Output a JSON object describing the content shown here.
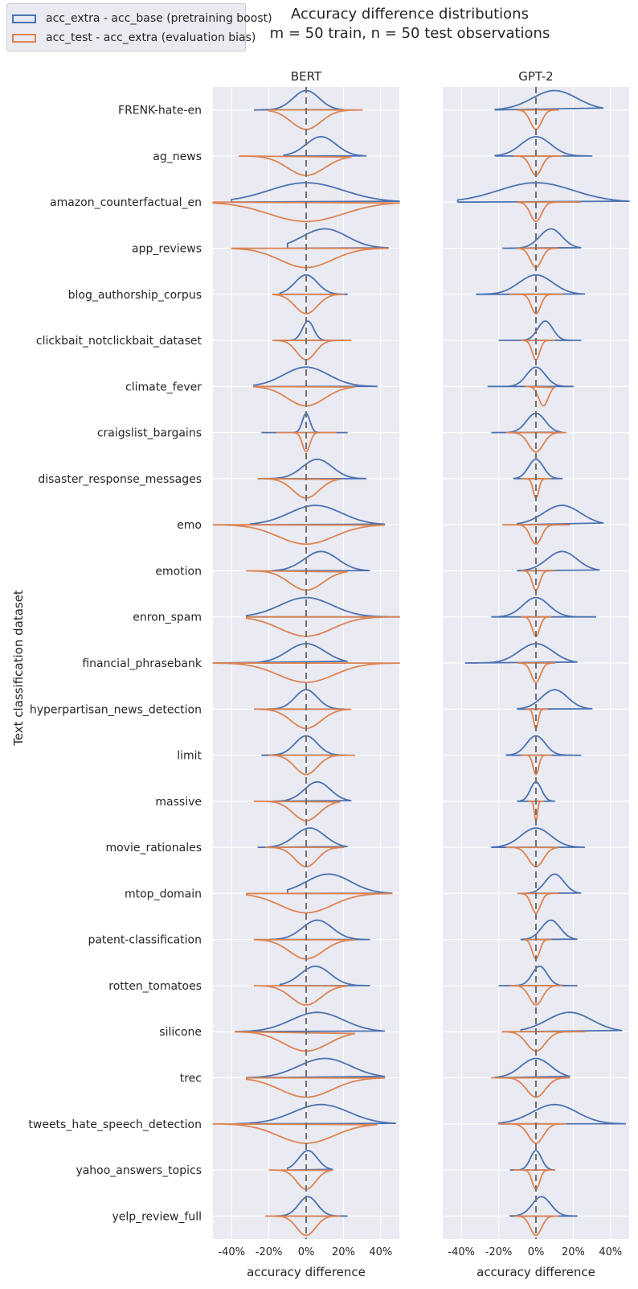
{
  "figure": {
    "title_line1": "Accuracy difference distributions",
    "title_line2": "m = 50 train, n = 50 test observations",
    "ylabel": "Text classification dataset"
  },
  "legend": {
    "items": [
      {
        "label": "acc_extra - acc_base (pretraining boost)",
        "color": "#4c72b0"
      },
      {
        "label": "acc_test - acc_extra (evaluation bias)",
        "color": "#dd8452"
      }
    ]
  },
  "chart_data": {
    "type": "violin",
    "xlabel": "accuracy difference",
    "xlim": [
      -0.5,
      0.5
    ],
    "xticks": [
      -0.4,
      -0.2,
      0.0,
      0.2,
      0.4
    ],
    "xtick_labels": [
      "-40%",
      "-20%",
      "0%",
      "20%",
      "40%"
    ],
    "reference_line": 0.0,
    "categories": [
      "FRENK-hate-en",
      "ag_news",
      "amazon_counterfactual_en",
      "app_reviews",
      "blog_authorship_corpus",
      "clickbait_notclickbait_dataset",
      "climate_fever",
      "craigslist_bargains",
      "disaster_response_messages",
      "emo",
      "emotion",
      "enron_spam",
      "financial_phrasebank",
      "hyperpartisan_news_detection",
      "limit",
      "massive",
      "movie_rationales",
      "mtop_domain",
      "patent-classification",
      "rotten_tomatoes",
      "silicone",
      "trec",
      "tweets_hate_speech_detection",
      "yahoo_answers_topics",
      "yelp_review_full"
    ],
    "panels": [
      {
        "title": "BERT",
        "pretraining_boost": [
          {
            "range": [
              -0.28,
              0.2
            ],
            "peak": 0.0,
            "spread": 0.07
          },
          {
            "range": [
              -0.12,
              0.32
            ],
            "peak": 0.08,
            "spread": 0.08
          },
          {
            "range": [
              -0.4,
              0.5
            ],
            "peak": 0.0,
            "spread": 0.2
          },
          {
            "range": [
              -0.1,
              0.44
            ],
            "peak": 0.1,
            "spread": 0.12
          },
          {
            "range": [
              -0.14,
              0.22
            ],
            "peak": 0.0,
            "spread": 0.06
          },
          {
            "range": [
              -0.16,
              0.2
            ],
            "peak": 0.01,
            "spread": 0.03
          },
          {
            "range": [
              -0.28,
              0.38
            ],
            "peak": 0.0,
            "spread": 0.12
          },
          {
            "range": [
              -0.24,
              0.22
            ],
            "peak": 0.0,
            "spread": 0.02
          },
          {
            "range": [
              -0.26,
              0.32
            ],
            "peak": 0.06,
            "spread": 0.08
          },
          {
            "range": [
              -0.3,
              0.42
            ],
            "peak": 0.05,
            "spread": 0.14
          },
          {
            "range": [
              -0.18,
              0.34
            ],
            "peak": 0.08,
            "spread": 0.09
          },
          {
            "range": [
              -0.32,
              0.5
            ],
            "peak": 0.0,
            "spread": 0.14
          },
          {
            "range": [
              -0.5,
              0.22
            ],
            "peak": 0.0,
            "spread": 0.1
          },
          {
            "range": [
              -0.2,
              0.2
            ],
            "peak": 0.0,
            "spread": 0.06
          },
          {
            "range": [
              -0.24,
              0.22
            ],
            "peak": 0.0,
            "spread": 0.06
          },
          {
            "range": [
              -0.18,
              0.24
            ],
            "peak": 0.06,
            "spread": 0.07
          },
          {
            "range": [
              -0.26,
              0.22
            ],
            "peak": 0.02,
            "spread": 0.08
          },
          {
            "range": [
              -0.1,
              0.46
            ],
            "peak": 0.12,
            "spread": 0.12
          },
          {
            "range": [
              -0.2,
              0.34
            ],
            "peak": 0.06,
            "spread": 0.08
          },
          {
            "range": [
              -0.14,
              0.34
            ],
            "peak": 0.05,
            "spread": 0.08
          },
          {
            "range": [
              -0.38,
              0.42
            ],
            "peak": 0.06,
            "spread": 0.14
          },
          {
            "range": [
              -0.32,
              0.42
            ],
            "peak": 0.1,
            "spread": 0.14
          },
          {
            "range": [
              -0.38,
              0.48
            ],
            "peak": 0.08,
            "spread": 0.15
          },
          {
            "range": [
              -0.1,
              0.14
            ],
            "peak": 0.01,
            "spread": 0.05
          },
          {
            "range": [
              -0.16,
              0.22
            ],
            "peak": 0.01,
            "spread": 0.05
          }
        ],
        "evaluation_bias": [
          {
            "range": [
              -0.2,
              0.3
            ],
            "peak": 0.0,
            "spread": 0.08
          },
          {
            "range": [
              -0.36,
              0.24
            ],
            "peak": 0.0,
            "spread": 0.1
          },
          {
            "range": [
              -0.5,
              0.5
            ],
            "peak": 0.0,
            "spread": 0.2
          },
          {
            "range": [
              -0.4,
              0.44
            ],
            "peak": 0.0,
            "spread": 0.14
          },
          {
            "range": [
              -0.18,
              0.2
            ],
            "peak": 0.0,
            "spread": 0.06
          },
          {
            "range": [
              -0.18,
              0.24
            ],
            "peak": 0.0,
            "spread": 0.05
          },
          {
            "range": [
              -0.28,
              0.26
            ],
            "peak": 0.0,
            "spread": 0.1
          },
          {
            "range": [
              -0.16,
              0.16
            ],
            "peak": 0.0,
            "spread": 0.02
          },
          {
            "range": [
              -0.26,
              0.18
            ],
            "peak": 0.0,
            "spread": 0.07
          },
          {
            "range": [
              -0.5,
              0.42
            ],
            "peak": 0.0,
            "spread": 0.15
          },
          {
            "range": [
              -0.32,
              0.22
            ],
            "peak": 0.0,
            "spread": 0.09
          },
          {
            "range": [
              -0.32,
              0.5
            ],
            "peak": 0.0,
            "spread": 0.14
          },
          {
            "range": [
              -0.5,
              0.5
            ],
            "peak": 0.0,
            "spread": 0.15
          },
          {
            "range": [
              -0.28,
              0.24
            ],
            "peak": 0.0,
            "spread": 0.08
          },
          {
            "range": [
              -0.2,
              0.26
            ],
            "peak": 0.0,
            "spread": 0.06
          },
          {
            "range": [
              -0.28,
              0.18
            ],
            "peak": 0.0,
            "spread": 0.07
          },
          {
            "range": [
              -0.22,
              0.2
            ],
            "peak": 0.0,
            "spread": 0.06
          },
          {
            "range": [
              -0.32,
              0.46
            ],
            "peak": 0.0,
            "spread": 0.14
          },
          {
            "range": [
              -0.28,
              0.26
            ],
            "peak": 0.0,
            "spread": 0.09
          },
          {
            "range": [
              -0.28,
              0.22
            ],
            "peak": 0.0,
            "spread": 0.08
          },
          {
            "range": [
              -0.38,
              0.26
            ],
            "peak": 0.0,
            "spread": 0.12
          },
          {
            "range": [
              -0.32,
              0.42
            ],
            "peak": 0.0,
            "spread": 0.14
          },
          {
            "range": [
              -0.5,
              0.38
            ],
            "peak": 0.0,
            "spread": 0.15
          },
          {
            "range": [
              -0.2,
              0.14
            ],
            "peak": 0.0,
            "spread": 0.05
          },
          {
            "range": [
              -0.22,
              0.18
            ],
            "peak": 0.0,
            "spread": 0.05
          }
        ]
      },
      {
        "title": "GPT-2",
        "pretraining_boost": [
          {
            "range": [
              -0.22,
              0.36
            ],
            "peak": 0.1,
            "spread": 0.12
          },
          {
            "range": [
              -0.22,
              0.3
            ],
            "peak": 0.0,
            "spread": 0.08
          },
          {
            "range": [
              -0.42,
              0.5
            ],
            "peak": 0.0,
            "spread": 0.2
          },
          {
            "range": [
              -0.18,
              0.24
            ],
            "peak": 0.08,
            "spread": 0.06
          },
          {
            "range": [
              -0.32,
              0.26
            ],
            "peak": 0.0,
            "spread": 0.09
          },
          {
            "range": [
              -0.2,
              0.24
            ],
            "peak": 0.05,
            "spread": 0.04
          },
          {
            "range": [
              -0.26,
              0.2
            ],
            "peak": 0.0,
            "spread": 0.05
          },
          {
            "range": [
              -0.24,
              0.14
            ],
            "peak": 0.0,
            "spread": 0.05
          },
          {
            "range": [
              -0.12,
              0.14
            ],
            "peak": 0.0,
            "spread": 0.04
          },
          {
            "range": [
              -0.1,
              0.36
            ],
            "peak": 0.14,
            "spread": 0.1
          },
          {
            "range": [
              -0.1,
              0.34
            ],
            "peak": 0.14,
            "spread": 0.08
          },
          {
            "range": [
              -0.24,
              0.32
            ],
            "peak": 0.0,
            "spread": 0.07
          },
          {
            "range": [
              -0.38,
              0.22
            ],
            "peak": 0.0,
            "spread": 0.09
          },
          {
            "range": [
              -0.1,
              0.3
            ],
            "peak": 0.1,
            "spread": 0.07
          },
          {
            "range": [
              -0.16,
              0.24
            ],
            "peak": 0.0,
            "spread": 0.05
          },
          {
            "range": [
              -0.1,
              0.1
            ],
            "peak": 0.0,
            "spread": 0.03
          },
          {
            "range": [
              -0.24,
              0.26
            ],
            "peak": 0.0,
            "spread": 0.08
          },
          {
            "range": [
              -0.08,
              0.24
            ],
            "peak": 0.1,
            "spread": 0.05
          },
          {
            "range": [
              -0.08,
              0.22
            ],
            "peak": 0.08,
            "spread": 0.05
          },
          {
            "range": [
              -0.2,
              0.22
            ],
            "peak": 0.02,
            "spread": 0.04
          },
          {
            "range": [
              -0.08,
              0.46
            ],
            "peak": 0.18,
            "spread": 0.12
          },
          {
            "range": [
              -0.22,
              0.18
            ],
            "peak": 0.0,
            "spread": 0.08
          },
          {
            "range": [
              -0.2,
              0.48
            ],
            "peak": 0.1,
            "spread": 0.12
          },
          {
            "range": [
              -0.14,
              0.1
            ],
            "peak": 0.0,
            "spread": 0.03
          },
          {
            "range": [
              -0.14,
              0.22
            ],
            "peak": 0.03,
            "spread": 0.05
          }
        ],
        "evaluation_bias": [
          {
            "range": [
              -0.1,
              0.12
            ],
            "peak": 0.0,
            "spread": 0.03
          },
          {
            "range": [
              -0.12,
              0.14
            ],
            "peak": 0.0,
            "spread": 0.03
          },
          {
            "range": [
              -0.1,
              0.24
            ],
            "peak": 0.0,
            "spread": 0.03
          },
          {
            "range": [
              -0.1,
              0.12
            ],
            "peak": 0.0,
            "spread": 0.03
          },
          {
            "range": [
              -0.14,
              0.14
            ],
            "peak": 0.0,
            "spread": 0.025
          },
          {
            "range": [
              -0.08,
              0.1
            ],
            "peak": 0.0,
            "spread": 0.02
          },
          {
            "range": [
              -0.06,
              0.1
            ],
            "peak": 0.04,
            "spread": 0.025
          },
          {
            "range": [
              -0.16,
              0.16
            ],
            "peak": 0.0,
            "spread": 0.04
          },
          {
            "range": [
              -0.08,
              0.08
            ],
            "peak": 0.0,
            "spread": 0.015
          },
          {
            "range": [
              -0.18,
              0.18
            ],
            "peak": 0.0,
            "spread": 0.03
          },
          {
            "range": [
              -0.08,
              0.1
            ],
            "peak": 0.0,
            "spread": 0.02
          },
          {
            "range": [
              -0.08,
              0.08
            ],
            "peak": 0.0,
            "spread": 0.02
          },
          {
            "range": [
              -0.1,
              0.1
            ],
            "peak": 0.0,
            "spread": 0.025
          },
          {
            "range": [
              -0.06,
              0.06
            ],
            "peak": 0.0,
            "spread": 0.012
          },
          {
            "range": [
              -0.08,
              0.08
            ],
            "peak": 0.0,
            "spread": 0.015
          },
          {
            "range": [
              -0.04,
              0.04
            ],
            "peak": 0.0,
            "spread": 0.008
          },
          {
            "range": [
              -0.16,
              0.12
            ],
            "peak": 0.0,
            "spread": 0.04
          },
          {
            "range": [
              -0.1,
              0.12
            ],
            "peak": 0.0,
            "spread": 0.025
          },
          {
            "range": [
              -0.06,
              0.08
            ],
            "peak": 0.0,
            "spread": 0.02
          },
          {
            "range": [
              -0.14,
              0.14
            ],
            "peak": 0.0,
            "spread": 0.035
          },
          {
            "range": [
              -0.18,
              0.26
            ],
            "peak": 0.0,
            "spread": 0.05
          },
          {
            "range": [
              -0.24,
              0.18
            ],
            "peak": 0.0,
            "spread": 0.05
          },
          {
            "range": [
              -0.2,
              0.16
            ],
            "peak": 0.0,
            "spread": 0.04
          },
          {
            "range": [
              -0.12,
              0.1
            ],
            "peak": 0.0,
            "spread": 0.02
          },
          {
            "range": [
              -0.12,
              0.12
            ],
            "peak": 0.0,
            "spread": 0.03
          }
        ]
      }
    ]
  }
}
